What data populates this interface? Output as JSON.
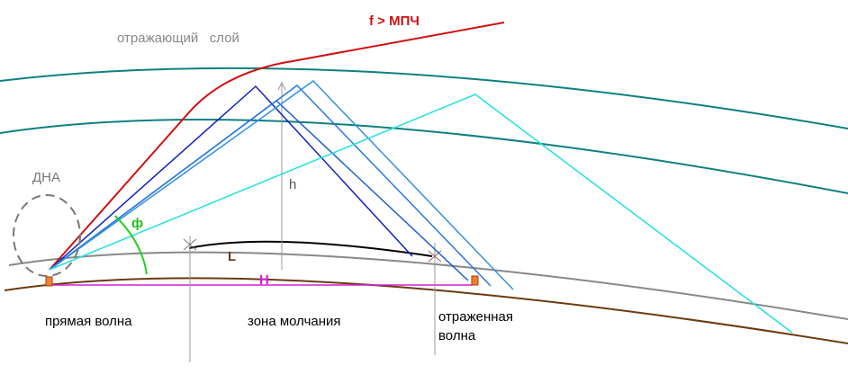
{
  "labels": {
    "mpch": "f > МПЧ",
    "layer": "отражающий   слой",
    "dna": "ДНА",
    "height": "h",
    "angle": "ф",
    "arc_length": "L",
    "ground_distance": "H",
    "direct_wave": "прямая волна",
    "silence_zone": "зона молчания",
    "reflected_wave": [
      "отраженная",
      "волна"
    ]
  }
}
